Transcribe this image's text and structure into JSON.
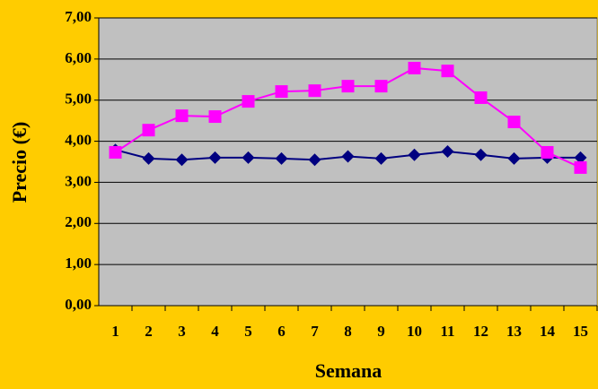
{
  "chart_data": {
    "type": "line",
    "x_label": "Semana",
    "y_label": "Precio (€)",
    "categories": [
      "1",
      "2",
      "3",
      "4",
      "5",
      "6",
      "7",
      "8",
      "9",
      "10",
      "11",
      "12",
      "13",
      "14",
      "15"
    ],
    "series": [
      {
        "color": "#000080",
        "marker": "diamond",
        "values": [
          3.79,
          3.58,
          3.55,
          3.6,
          3.6,
          3.58,
          3.55,
          3.63,
          3.58,
          3.67,
          3.75,
          3.67,
          3.58,
          3.6,
          3.6
        ]
      },
      {
        "color": "#ff00ff",
        "marker": "square",
        "values": [
          3.73,
          4.27,
          4.62,
          4.6,
          4.97,
          5.21,
          5.23,
          5.34,
          5.34,
          5.78,
          5.71,
          5.06,
          4.47,
          3.73,
          3.36
        ]
      }
    ],
    "ylim": [
      0,
      7
    ],
    "yticks": [
      {
        "value": 0,
        "label": "0,00"
      },
      {
        "value": 1,
        "label": "1,00"
      },
      {
        "value": 2,
        "label": "2,00"
      },
      {
        "value": 3,
        "label": "3,00"
      },
      {
        "value": 4,
        "label": "4,00"
      },
      {
        "value": 5,
        "label": "5,00"
      },
      {
        "value": 6,
        "label": "6,00"
      },
      {
        "value": 7,
        "label": "7,00"
      }
    ],
    "grid": true
  }
}
